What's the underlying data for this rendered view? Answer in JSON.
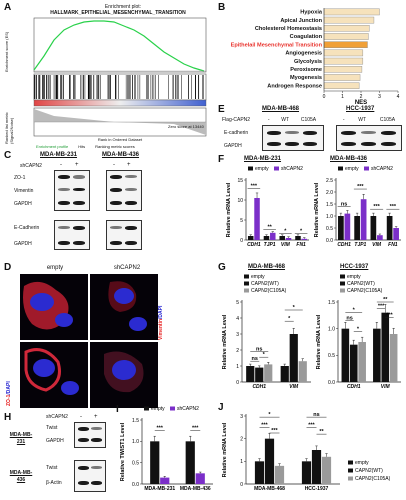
{
  "panels": {
    "A": {
      "label": "A",
      "title": "Enrichment plot:",
      "subtitle": "HALLMARK_EPITHELIAL_MESENCHYMAL_TRANSITION",
      "ylabel_top": "Enrichment score (ES)",
      "ylabel_bottom": "Ranked list metric (Signal2Noise)",
      "xlabel": "Rank in Ordered Dataset",
      "legend": [
        "Enrichment profile",
        "Hits",
        "Ranking metric scores"
      ],
      "zero_note": "Zero score at 13440",
      "xticks": [
        "0",
        "5,000",
        "10,000",
        "15,000",
        "20,000",
        "25,000"
      ]
    },
    "B": {
      "label": "B",
      "xlabel": "NES",
      "highlight_color": "#e8322c"
    },
    "C": {
      "label": "C",
      "cells": [
        "MDA-MB-231",
        "MDA-MB-436"
      ],
      "treatment": "shCAPN2",
      "signs": [
        "-",
        "+"
      ],
      "rows": [
        "ZO-1",
        "Vimentin",
        "GAPDH",
        "E-Cadherin",
        "GAPDH"
      ]
    },
    "D": {
      "label": "D",
      "cols": [
        "empty",
        "shCAPN2"
      ],
      "row1_stain": [
        "Vimentin",
        "/DAPI"
      ],
      "row2_stain": [
        "ZO-1",
        "/DAPI"
      ]
    },
    "E": {
      "label": "E",
      "cells": [
        "MDA-MB-468",
        "HCC-1937"
      ],
      "construct": "Flag-CAPN2",
      "conds": [
        "-",
        "WT",
        "C105A"
      ],
      "rows": [
        "E-cadherin",
        "GAPDH"
      ]
    },
    "F": {
      "label": "F",
      "title_left": "MDA-MB-231",
      "title_right": "MDA-MB-436"
    },
    "G": {
      "label": "G",
      "title_left": "MDA-MB-468",
      "title_right": "HCC-1937"
    },
    "H": {
      "label": "H",
      "treatment": "shCAPN2",
      "signs": [
        "-",
        "+"
      ],
      "cell1": [
        "MDA-MB-",
        "231"
      ],
      "cell2": [
        "MDA-MB-",
        "436"
      ],
      "rows1": [
        "Twist",
        "GAPDH"
      ],
      "rows2": [
        "Twist",
        "β-Actin"
      ]
    },
    "I": {
      "label": "I"
    },
    "J": {
      "label": "J"
    }
  },
  "chart_data": [
    {
      "id": "B",
      "type": "bar",
      "orientation": "horizontal",
      "categories": [
        "Hypoxia",
        "Apical Junction",
        "Cholesterol Homeostasis",
        "Coagulation",
        "Epithelail Mesenchymal Transition",
        "Angiogenesis",
        "Glycolysis",
        "Peroxisome",
        "Myogenesis",
        "Androgen Response"
      ],
      "values": [
        3.0,
        2.7,
        2.45,
        2.4,
        2.35,
        2.1,
        2.1,
        2.05,
        1.95,
        1.9
      ],
      "highlight": "Epithelail Mesenchymal Transition",
      "xlabel": "NES",
      "xlim": [
        0,
        4
      ],
      "xticks": [
        0,
        1,
        2,
        3,
        4
      ]
    },
    {
      "id": "F-left",
      "type": "bar",
      "title": "MDA-MB-231",
      "ylabel": "Relative mRNA Level",
      "ylim": [
        0,
        15
      ],
      "yticks": [
        0,
        5,
        10,
        15
      ],
      "categories": [
        "CDH1",
        "TJP1",
        "VIM",
        "FN1"
      ],
      "series": [
        {
          "name": "empty",
          "values": [
            1.0,
            1.0,
            1.0,
            1.0
          ]
        },
        {
          "name": "shCAPN2",
          "values": [
            10.5,
            1.8,
            0.5,
            0.3
          ]
        }
      ],
      "significance": [
        "***",
        "**",
        "*",
        "*"
      ]
    },
    {
      "id": "F-right",
      "type": "bar",
      "title": "MDA-MB-436",
      "ylabel": "Relative mRNA Level",
      "ylim": [
        0,
        2.5
      ],
      "yticks": [
        0.0,
        0.5,
        1.0,
        1.5,
        2.0,
        2.5
      ],
      "categories": [
        "CDH1",
        "TJP1",
        "VIM",
        "FN1"
      ],
      "series": [
        {
          "name": "empty",
          "values": [
            1.0,
            1.0,
            1.0,
            1.0
          ]
        },
        {
          "name": "shCAPN2",
          "values": [
            1.1,
            1.7,
            0.2,
            0.5
          ]
        }
      ],
      "significance": [
        "ns",
        "***",
        "***",
        "***"
      ]
    },
    {
      "id": "G-left",
      "type": "bar",
      "title": "MDA-MB-468",
      "ylabel": "Relative mRNA Level",
      "ylim": [
        0,
        5
      ],
      "yticks": [
        0,
        1,
        2,
        3,
        4,
        5
      ],
      "categories": [
        "CDH1",
        "VIM"
      ],
      "series": [
        {
          "name": "empty",
          "values": [
            1.0,
            1.0
          ]
        },
        {
          "name": "CAPN2(WT)",
          "values": [
            0.9,
            3.0
          ]
        },
        {
          "name": "CAPN2(C105A)",
          "values": [
            1.1,
            1.3
          ]
        }
      ],
      "significance": [
        "ns",
        "ns",
        "*",
        "*",
        "*"
      ]
    },
    {
      "id": "G-right",
      "type": "bar",
      "title": "HCC-1937",
      "ylabel": "Relative mRNA Level",
      "ylim": [
        0,
        1.5
      ],
      "yticks": [
        0.0,
        0.5,
        1.0,
        1.5
      ],
      "categories": [
        "CDH1",
        "VIM"
      ],
      "series": [
        {
          "name": "empty",
          "values": [
            1.0,
            1.0
          ]
        },
        {
          "name": "CAPN2(WT)",
          "values": [
            0.7,
            1.3
          ]
        },
        {
          "name": "CAPN2(C105A)",
          "values": [
            0.75,
            0.9
          ]
        }
      ],
      "significance": [
        "ns",
        "*",
        "*",
        "**",
        "***",
        "***"
      ]
    },
    {
      "id": "I",
      "type": "bar",
      "ylabel": "Relative TWIST1 Level",
      "ylim": [
        0,
        1.5
      ],
      "yticks": [
        0.0,
        0.5,
        1.0,
        1.5
      ],
      "categories": [
        "MDA-MB-231",
        "MDA-MB-436"
      ],
      "series": [
        {
          "name": "empty",
          "values": [
            1.0,
            1.0
          ]
        },
        {
          "name": "shCAPN2",
          "values": [
            0.15,
            0.25
          ]
        }
      ],
      "significance": [
        "***",
        "***"
      ]
    },
    {
      "id": "J",
      "type": "bar",
      "ylabel": "Relative mRNA Level",
      "ylim": [
        0,
        3
      ],
      "yticks": [
        0,
        1,
        2,
        3
      ],
      "categories": [
        "MDA-MB-468",
        "HCC-1937"
      ],
      "series": [
        {
          "name": "empty",
          "values": [
            1.0,
            1.0
          ]
        },
        {
          "name": "CAPN2(WT)",
          "values": [
            2.0,
            1.5
          ]
        },
        {
          "name": "CAPN2(C105A)",
          "values": [
            0.8,
            1.2
          ]
        }
      ],
      "significance": [
        "*",
        "***",
        "***",
        "ns",
        "***",
        "**"
      ]
    }
  ]
}
